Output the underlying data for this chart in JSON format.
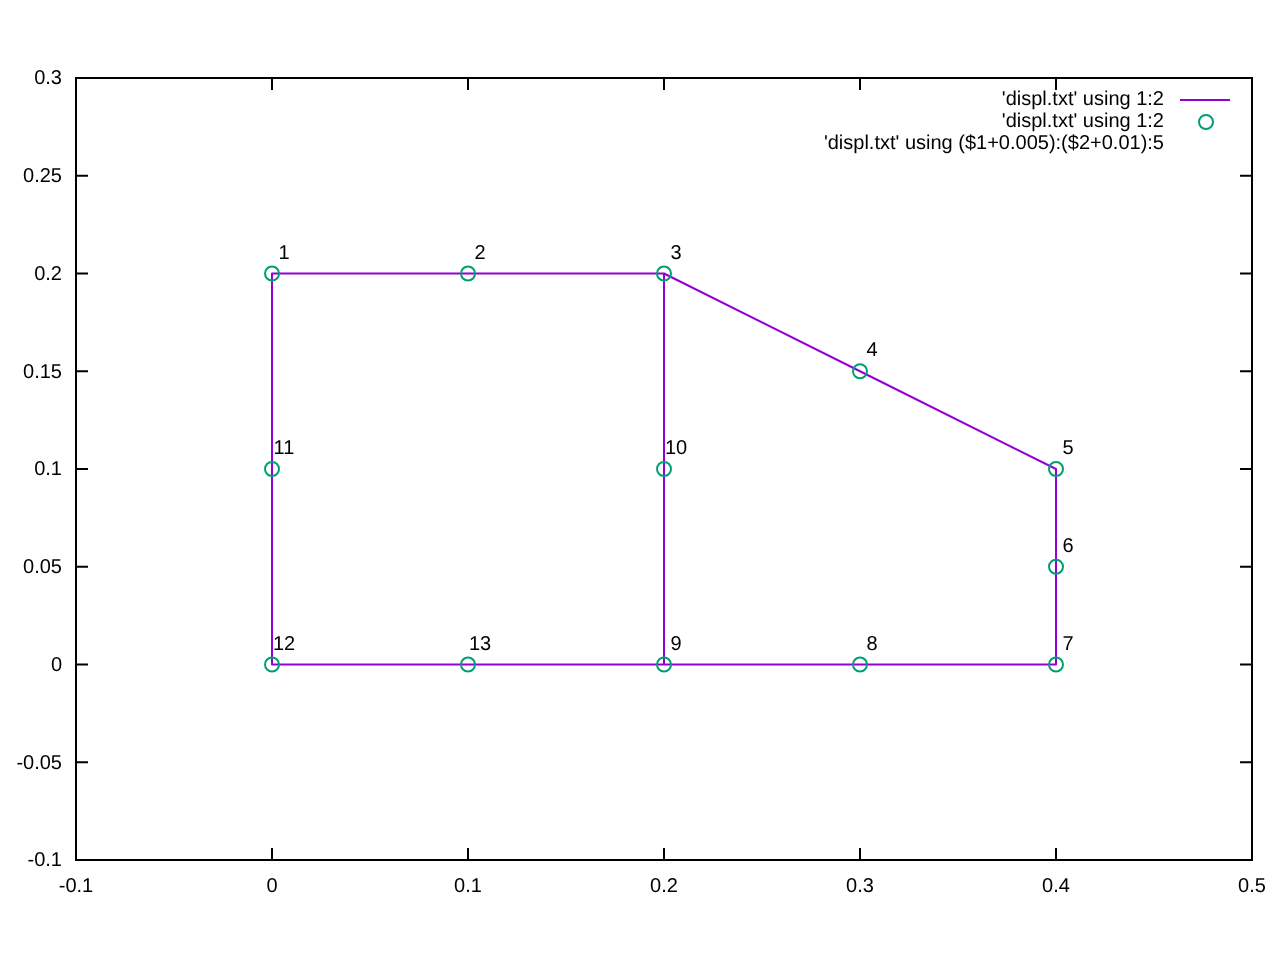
{
  "chart_data": {
    "type": "line",
    "xlim": [
      -0.1,
      0.5
    ],
    "ylim": [
      -0.1,
      0.3
    ],
    "xticks": [
      -0.1,
      0,
      0.1,
      0.2,
      0.3,
      0.4,
      0.5
    ],
    "yticks": [
      -0.1,
      -0.05,
      0,
      0.05,
      0.1,
      0.15,
      0.2,
      0.25,
      0.3
    ],
    "legend": "top right",
    "series": [
      {
        "name": "'displ.txt' using 1:2",
        "color": "#9400d3",
        "marker": "none",
        "x": [
          0.2,
          0.1,
          0,
          0,
          0,
          0.1,
          0.2,
          0.2,
          0.2,
          0.3,
          0.4,
          0.4,
          0.4,
          0.3,
          0.2
        ],
        "values": [
          0.2,
          0.2,
          0.2,
          0.1,
          0,
          0,
          0,
          0.1,
          0.2,
          0.15,
          0.1,
          0.05,
          0,
          0,
          0
        ]
      },
      {
        "name": "'displ.txt' using 1:2",
        "type": "scatter",
        "color": "#009e73",
        "marker": "circle",
        "x": [
          0,
          0.1,
          0.2,
          0.3,
          0.4,
          0.4,
          0.4,
          0.3,
          0.2,
          0.2,
          0,
          0,
          0.1
        ],
        "values": [
          0.2,
          0.2,
          0.2,
          0.15,
          0.1,
          0.05,
          0,
          0,
          0,
          0.1,
          0.1,
          0,
          0
        ]
      }
    ],
    "annotations": [
      "'displ.txt' using ($1+0.005):($2+0.01):5",
      {
        "text": "1",
        "x": 0,
        "y": 0.2
      },
      {
        "text": "2",
        "x": 0.1,
        "y": 0.2
      },
      {
        "text": "3",
        "x": 0.2,
        "y": 0.2
      },
      {
        "text": "4",
        "x": 0.3,
        "y": 0.15
      },
      {
        "text": "5",
        "x": 0.4,
        "y": 0.1
      },
      {
        "text": "6",
        "x": 0.4,
        "y": 0.05
      },
      {
        "text": "7",
        "x": 0.4,
        "y": 0
      },
      {
        "text": "8",
        "x": 0.3,
        "y": 0
      },
      {
        "text": "9",
        "x": 0.2,
        "y": 0
      },
      {
        "text": "10",
        "x": 0.2,
        "y": 0.1
      },
      {
        "text": "11",
        "x": 0,
        "y": 0.1
      },
      {
        "text": "12",
        "x": 0,
        "y": 0
      },
      {
        "text": "13",
        "x": 0.1,
        "y": 0
      }
    ]
  }
}
